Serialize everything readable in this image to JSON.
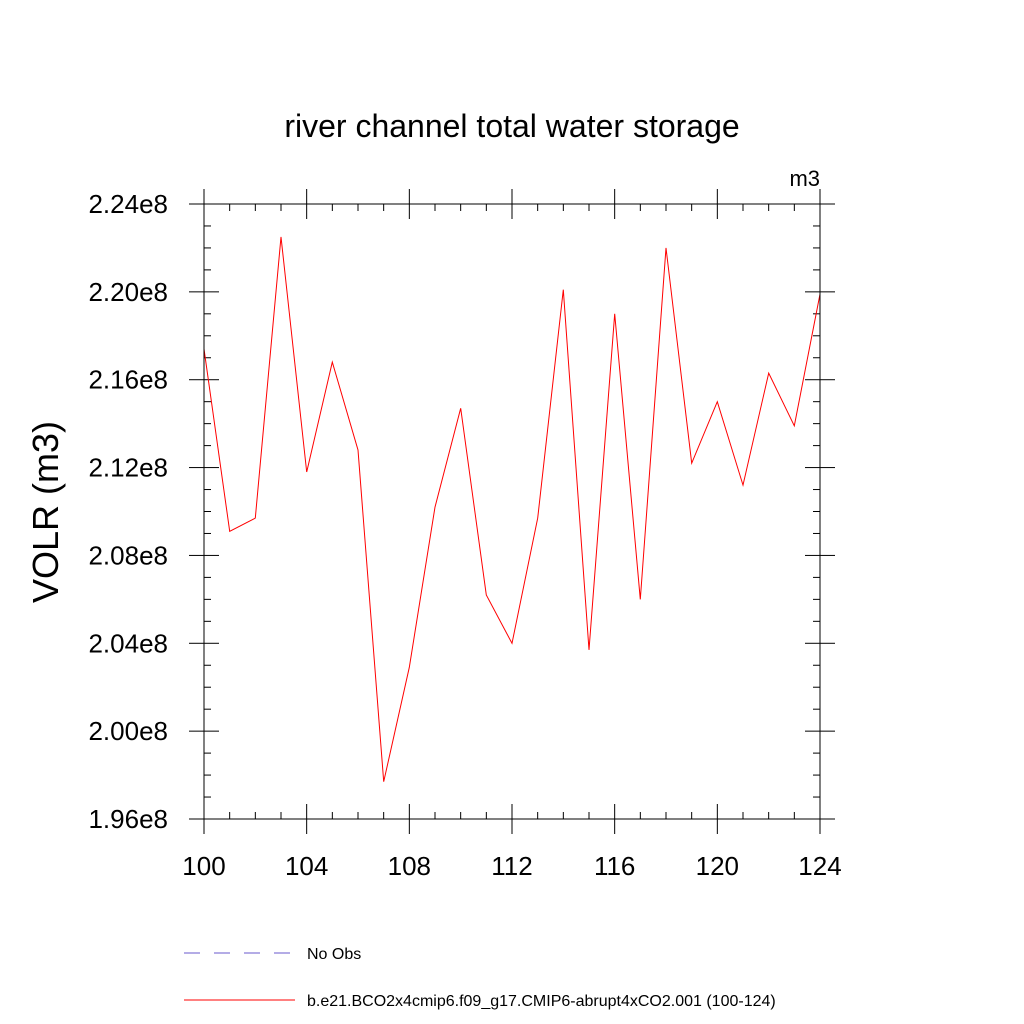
{
  "chart_data": {
    "type": "line",
    "title": "river channel total water storage",
    "units_label": "m3",
    "ylabel": "VOLR  (m3)",
    "xlabel": "",
    "xlim": [
      100,
      124
    ],
    "ylim": [
      196000000.0,
      224000000.0
    ],
    "x_ticks": [
      100,
      104,
      108,
      112,
      116,
      120,
      124
    ],
    "x_tick_labels": [
      "100",
      "104",
      "108",
      "112",
      "116",
      "120",
      "124"
    ],
    "y_ticks": [
      196000000.0,
      200000000.0,
      204000000.0,
      208000000.0,
      212000000.0,
      216000000.0,
      220000000.0,
      224000000.0
    ],
    "y_tick_labels": [
      "1.96e8",
      "2.00e8",
      "2.04e8",
      "2.08e8",
      "2.12e8",
      "2.16e8",
      "2.20e8",
      "2.24e8"
    ],
    "grid": false,
    "legend_placement": "bottom",
    "legend": [
      {
        "label": "No Obs",
        "color": "#6a5acd",
        "dash": "dashed"
      },
      {
        "label": "b.e21.BCO2x4cmip6.f09_g17.CMIP6-abrupt4xCO2.001 (100-124)",
        "color": "#ff0000",
        "dash": "solid"
      }
    ],
    "series": [
      {
        "color": "#ff0000",
        "x": [
          100,
          101,
          102,
          103,
          104,
          105,
          106,
          107,
          108,
          109,
          110,
          111,
          112,
          113,
          114,
          115,
          116,
          117,
          118,
          119,
          120,
          121,
          122,
          123,
          124
        ],
        "values": [
          217400000.0,
          209100000.0,
          209700000.0,
          222500000.0,
          211800000.0,
          216800000.0,
          212800000.0,
          197700000.0,
          202900000.0,
          210200000.0,
          214700000.0,
          206200000.0,
          204000000.0,
          209700000.0,
          220100000.0,
          203700000.0,
          219000000.0,
          206000000.0,
          222000000.0,
          212200000.0,
          215000000.0,
          211200000.0,
          216300000.0,
          213900000.0,
          219900000.0
        ]
      }
    ]
  }
}
